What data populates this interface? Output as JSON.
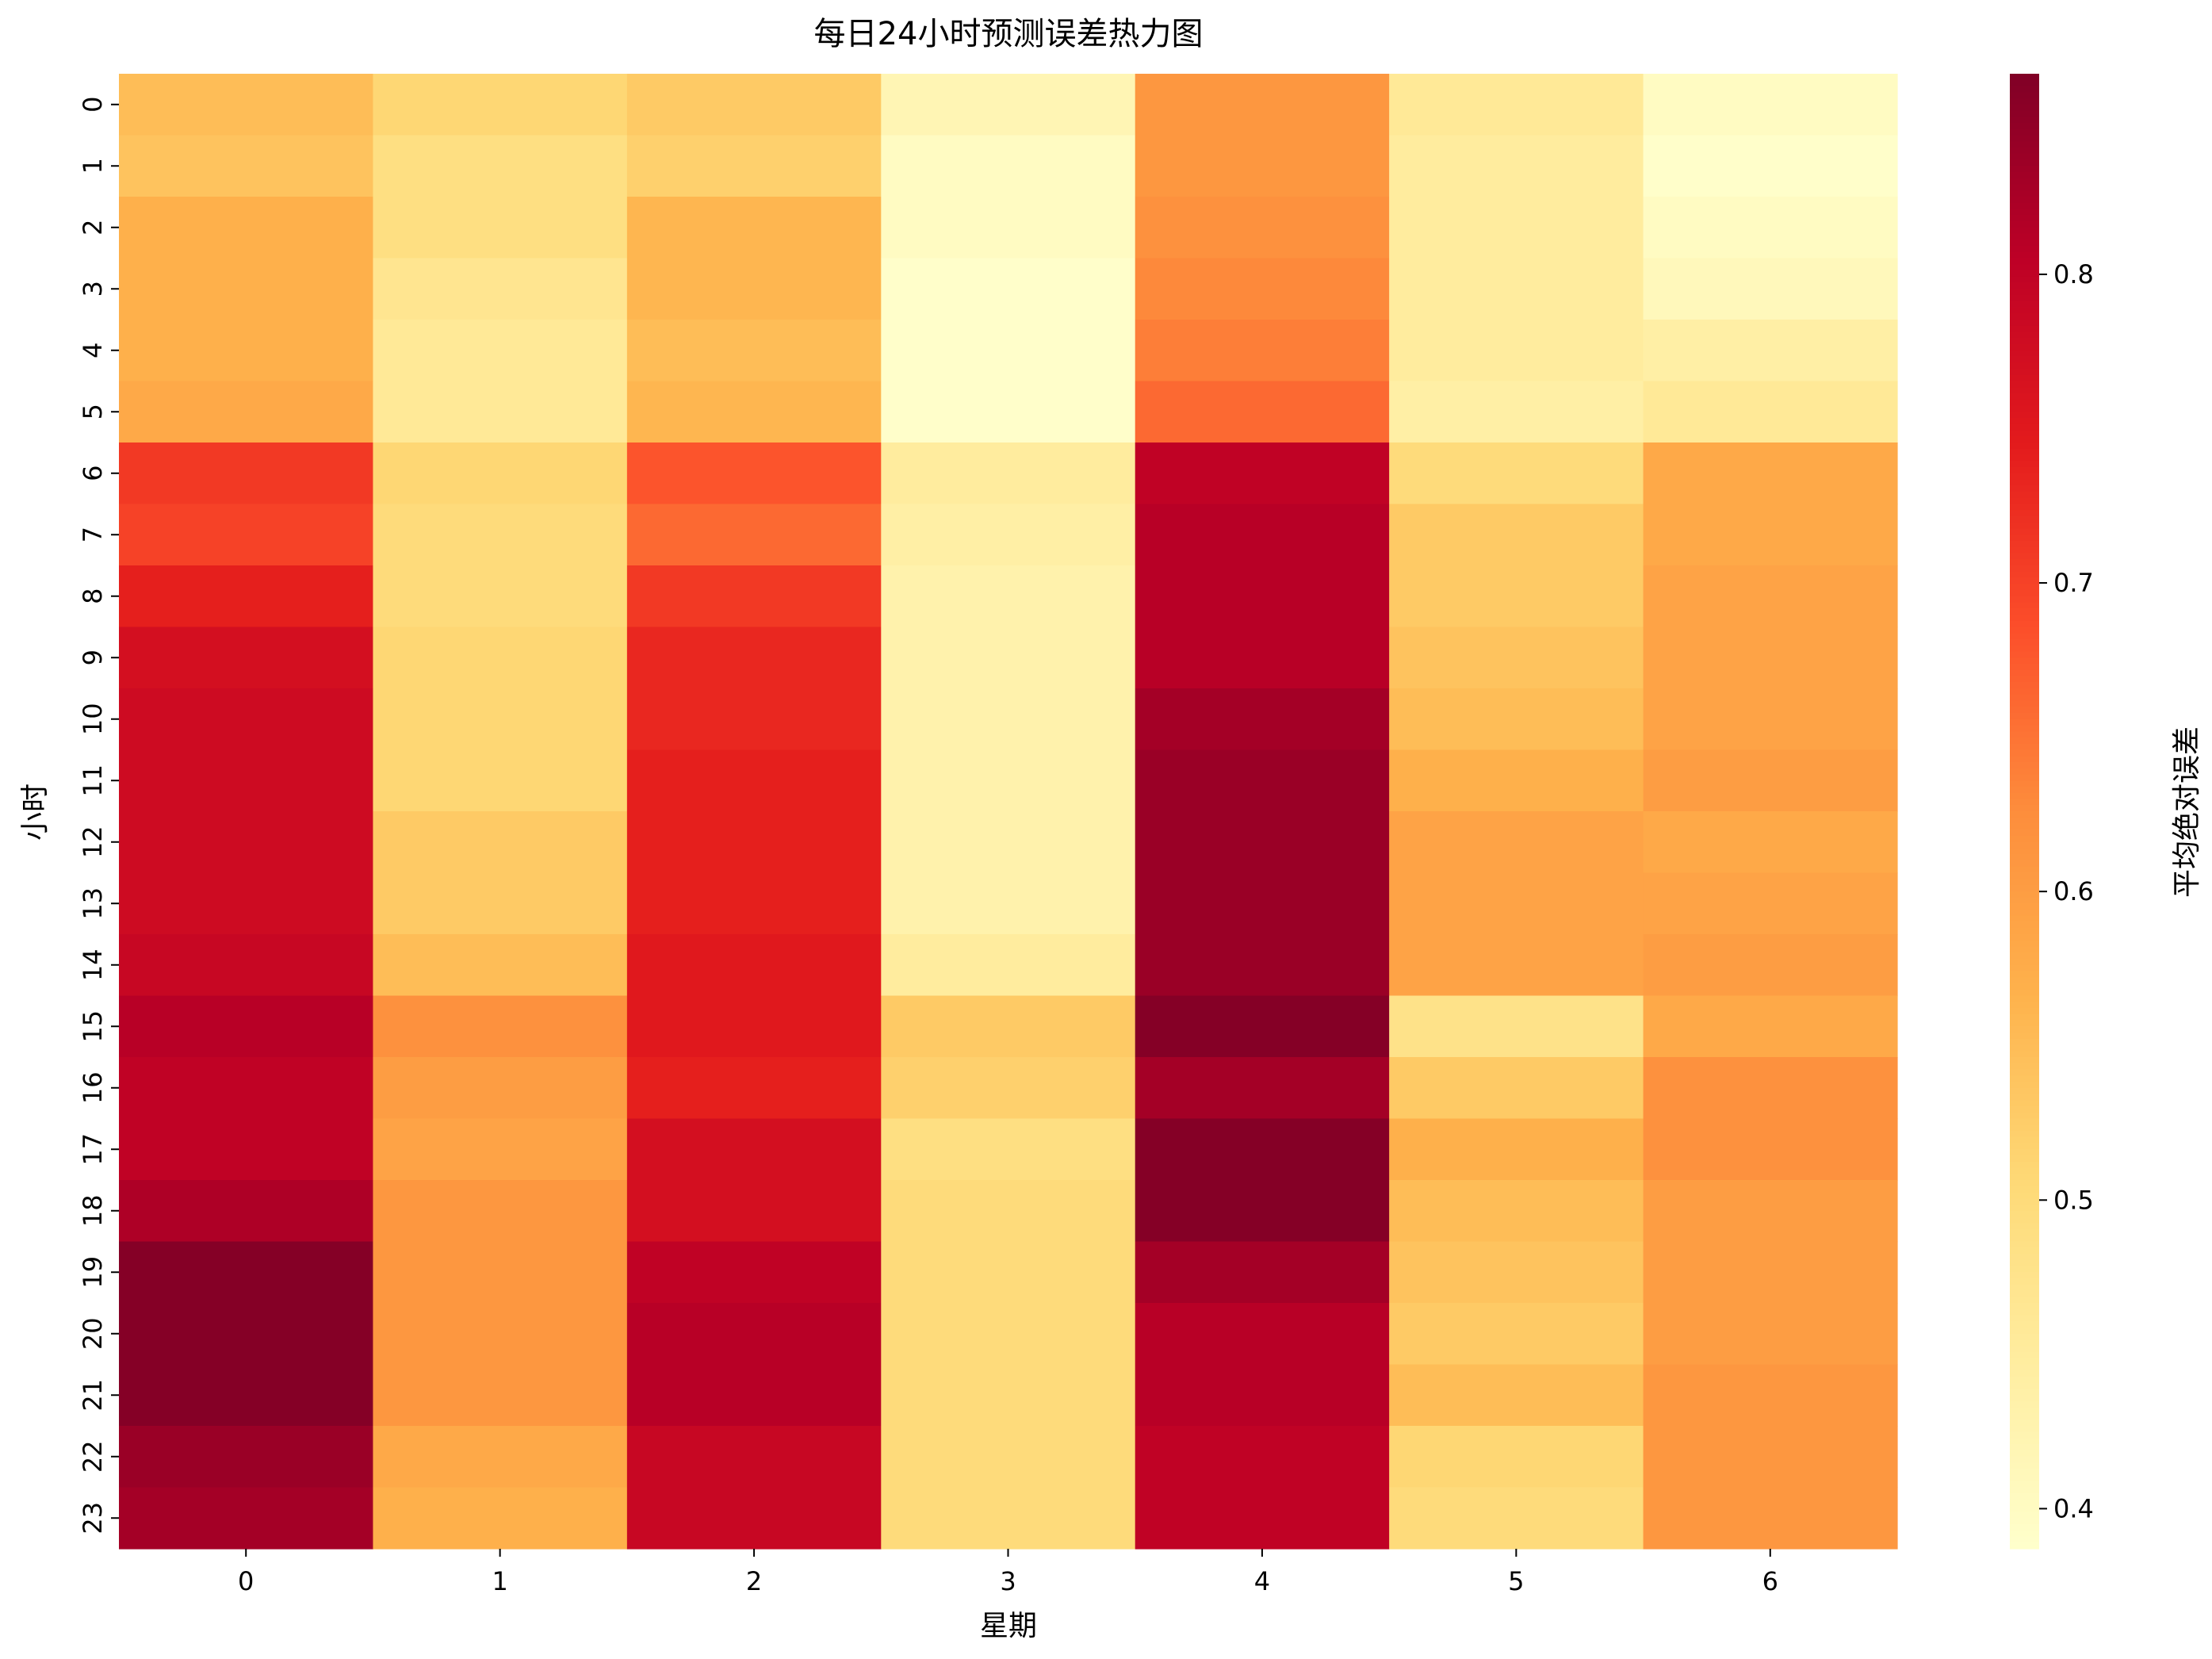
{
  "chart_data": {
    "type": "heatmap",
    "title": "每日24小时预测误差热力图",
    "xlabel": "星期",
    "ylabel": "小时",
    "colorbar_label": "平均绝对误差",
    "colormap": "YlOrRd",
    "grid": false,
    "colorbar_position": "right",
    "x_categories": [
      "0",
      "1",
      "2",
      "3",
      "4",
      "5",
      "6"
    ],
    "y_categories": [
      "0",
      "1",
      "2",
      "3",
      "4",
      "5",
      "6",
      "7",
      "8",
      "9",
      "10",
      "11",
      "12",
      "13",
      "14",
      "15",
      "16",
      "17",
      "18",
      "19",
      "20",
      "21",
      "22",
      "23"
    ],
    "vmin": 0.387,
    "vmax": 0.865,
    "colorbar_ticks": [
      0.4,
      0.5,
      0.6,
      0.7,
      0.8
    ],
    "colorbar_tick_labels": [
      "0.4",
      "0.5",
      "0.6",
      "0.7",
      "0.8"
    ],
    "values": [
      [
        0.55,
        0.51,
        0.53,
        0.42,
        0.61,
        0.46,
        0.4
      ],
      [
        0.54,
        0.49,
        0.52,
        0.4,
        0.61,
        0.45,
        0.39
      ],
      [
        0.57,
        0.49,
        0.56,
        0.4,
        0.62,
        0.45,
        0.4
      ],
      [
        0.57,
        0.47,
        0.56,
        0.39,
        0.63,
        0.45,
        0.41
      ],
      [
        0.57,
        0.46,
        0.55,
        0.39,
        0.64,
        0.45,
        0.44
      ],
      [
        0.58,
        0.46,
        0.56,
        0.39,
        0.66,
        0.44,
        0.46
      ],
      [
        0.71,
        0.51,
        0.68,
        0.45,
        0.8,
        0.5,
        0.58
      ],
      [
        0.7,
        0.5,
        0.66,
        0.44,
        0.81,
        0.53,
        0.58
      ],
      [
        0.74,
        0.5,
        0.71,
        0.43,
        0.81,
        0.53,
        0.59
      ],
      [
        0.77,
        0.51,
        0.73,
        0.43,
        0.81,
        0.54,
        0.59
      ],
      [
        0.78,
        0.51,
        0.73,
        0.43,
        0.83,
        0.55,
        0.59
      ],
      [
        0.78,
        0.51,
        0.74,
        0.43,
        0.84,
        0.57,
        0.6
      ],
      [
        0.78,
        0.53,
        0.74,
        0.43,
        0.84,
        0.59,
        0.58
      ],
      [
        0.78,
        0.53,
        0.74,
        0.43,
        0.84,
        0.59,
        0.59
      ],
      [
        0.79,
        0.55,
        0.75,
        0.45,
        0.84,
        0.59,
        0.6
      ],
      [
        0.81,
        0.62,
        0.75,
        0.53,
        0.86,
        0.48,
        0.58
      ],
      [
        0.8,
        0.6,
        0.74,
        0.52,
        0.83,
        0.53,
        0.62
      ],
      [
        0.8,
        0.59,
        0.77,
        0.49,
        0.86,
        0.57,
        0.62
      ],
      [
        0.82,
        0.61,
        0.77,
        0.5,
        0.86,
        0.55,
        0.6
      ],
      [
        0.86,
        0.61,
        0.8,
        0.5,
        0.83,
        0.54,
        0.6
      ],
      [
        0.86,
        0.61,
        0.81,
        0.5,
        0.81,
        0.53,
        0.6
      ],
      [
        0.86,
        0.61,
        0.81,
        0.5,
        0.81,
        0.55,
        0.61
      ],
      [
        0.84,
        0.58,
        0.79,
        0.5,
        0.8,
        0.51,
        0.61
      ],
      [
        0.83,
        0.57,
        0.79,
        0.5,
        0.8,
        0.5,
        0.61
      ]
    ]
  }
}
